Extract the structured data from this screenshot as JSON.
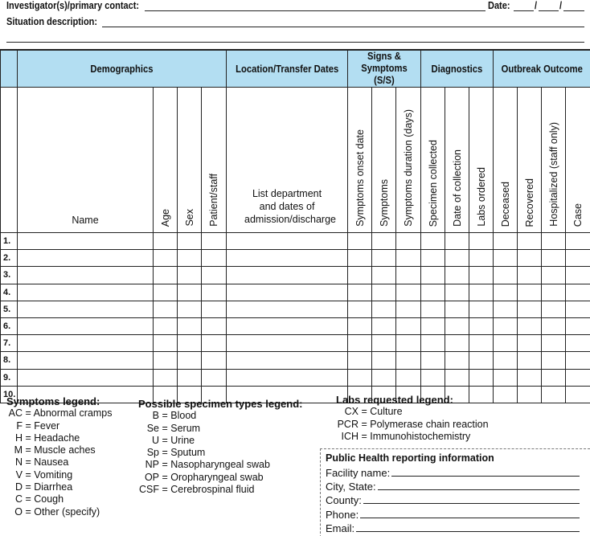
{
  "header": {
    "investigator_label": "Investigator(s)/primary contact:",
    "date_label": "Date:",
    "date_sep": "/",
    "situation_label": "Situation description:"
  },
  "table": {
    "groups": [
      "Demographics",
      "Location/Transfer Dates",
      "Signs & Symptoms (S/S)",
      "Diagnostics",
      "Outbreak Outcome"
    ],
    "columns": [
      "Name",
      "Age",
      "Sex",
      "Patient/staff",
      "List department and dates of admission/discharge",
      "Symptoms onset date",
      "Symptoms",
      "Symptoms duration (days)",
      "Specimen collected",
      "Date of collection",
      "Labs ordered",
      "Deceased",
      "Recovered",
      "Hospitalized (staff only)",
      "Case"
    ],
    "rows": [
      "1.",
      "2.",
      "3.",
      "4.",
      "5.",
      "6.",
      "7.",
      "8.",
      "9.",
      "10."
    ],
    "header_color": "#b3def2"
  },
  "symptoms_legend": {
    "title": "Symptoms legend:",
    "items": [
      {
        "k": "AC",
        "v": "Abnormal cramps"
      },
      {
        "k": "F",
        "v": "Fever"
      },
      {
        "k": "H",
        "v": "Headache"
      },
      {
        "k": "M",
        "v": "Muscle aches"
      },
      {
        "k": "N",
        "v": "Nausea"
      },
      {
        "k": "V",
        "v": "Vomiting"
      },
      {
        "k": "D",
        "v": "Diarrhea"
      },
      {
        "k": "C",
        "v": "Cough"
      },
      {
        "k": "O",
        "v": "Other (specify)"
      }
    ]
  },
  "specimen_legend": {
    "title": "Possible specimen types legend:",
    "items": [
      {
        "k": "B",
        "v": "Blood"
      },
      {
        "k": "Se",
        "v": "Serum"
      },
      {
        "k": "U",
        "v": "Urine"
      },
      {
        "k": "Sp",
        "v": "Sputum"
      },
      {
        "k": "NP",
        "v": "Nasopharyngeal swab"
      },
      {
        "k": "OP",
        "v": "Oropharyngeal swab"
      },
      {
        "k": "CSF",
        "v": "Cerebrospinal fluid"
      }
    ]
  },
  "labs_legend": {
    "title": "Labs requested legend:",
    "items": [
      {
        "k": "CX",
        "v": "Culture"
      },
      {
        "k": "PCR",
        "v": "Polymerase chain reaction"
      },
      {
        "k": "ICH",
        "v": "Immunohistochemistry"
      }
    ]
  },
  "public_health": {
    "title": "Public Health reporting information",
    "fields": [
      "Facility name:",
      "City, State:",
      "County:",
      "Phone:",
      "Email:"
    ]
  }
}
